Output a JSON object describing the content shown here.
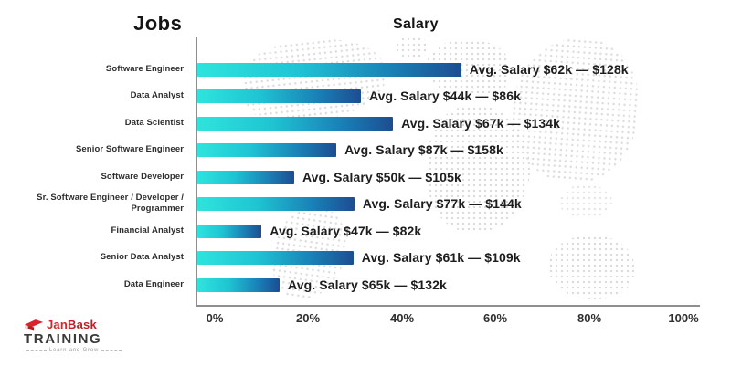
{
  "header": {
    "jobs_title": "Jobs",
    "salary_title": "Salary"
  },
  "logo": {
    "jan": "Jan",
    "bask": "Bask",
    "training": "TRAINING",
    "tagline": "Learn and Grow",
    "accent_red": "#D6252B"
  },
  "colors": {
    "bar_gradient_start": "#2EE4DD",
    "bar_gradient_mid": "#1A83B7",
    "bar_gradient_end": "#1C4D92",
    "axis_line": "#8F8F8F",
    "map_dots": "#D7D7D7",
    "text_dark": "#1D1D1D"
  },
  "chart_data": {
    "type": "bar",
    "orientation": "horizontal",
    "title": "Salary",
    "categories_title": "Jobs",
    "x_ticks": [
      "0%",
      "20%",
      "40%",
      "60%",
      "80%",
      "100%"
    ],
    "xlim": [
      0,
      100
    ],
    "grid": false,
    "legend": false,
    "rows": [
      {
        "job": "Software Engineer",
        "label": "Avg. Salary $62k — $128k",
        "avg_low_k": 62,
        "avg_high_k": 128,
        "axis_value_percent": 53,
        "bar_percent": 52.6
      },
      {
        "job": "Data Analyst",
        "label": "Avg. Salary $44k — $86k",
        "avg_low_k": 44,
        "avg_high_k": 86,
        "axis_value_percent": 31,
        "bar_percent": 32.6
      },
      {
        "job": "Data Scientist",
        "label": "Avg. Salary $67k — $134k",
        "avg_low_k": 67,
        "avg_high_k": 134,
        "axis_value_percent": 38,
        "bar_percent": 39.0
      },
      {
        "job": "Senior Software Engineer",
        "label": "Avg. Salary $87k — $158k",
        "avg_low_k": 87,
        "avg_high_k": 158,
        "axis_value_percent": 26,
        "bar_percent": 27.7
      },
      {
        "job": "Software Developer",
        "label": "Avg. Salary $50k — $105k",
        "avg_low_k": 50,
        "avg_high_k": 105,
        "axis_value_percent": 17,
        "bar_percent": 19.3
      },
      {
        "job": "Sr. Software Engineer / Developer / Programmer",
        "label": "Avg. Salary $77k — $144k",
        "avg_low_k": 77,
        "avg_high_k": 144,
        "axis_value_percent": 30,
        "bar_percent": 31.3
      },
      {
        "job": "Financial Analyst",
        "label": "Avg. Salary $47k — $82k",
        "avg_low_k": 47,
        "avg_high_k": 82,
        "axis_value_percent": 10,
        "bar_percent": 12.8
      },
      {
        "job": "Senior Data Analyst",
        "label": "Avg. Salary $61k — $109k",
        "avg_low_k": 61,
        "avg_high_k": 109,
        "axis_value_percent": 30,
        "bar_percent": 31.1
      },
      {
        "job": "Data Engineer",
        "label": "Avg. Salary $65k — $132k",
        "avg_low_k": 65,
        "avg_high_k": 132,
        "axis_value_percent": 14,
        "bar_percent": 16.4
      }
    ]
  }
}
